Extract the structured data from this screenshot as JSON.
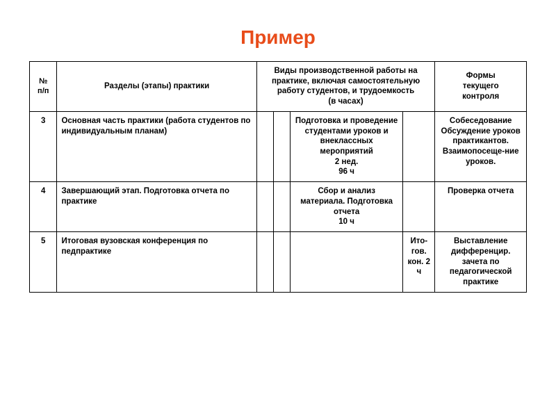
{
  "title": "Пример",
  "colors": {
    "title": "#e84c1a",
    "border": "#000000",
    "text": "#000000",
    "background": "#ffffff"
  },
  "columns": {
    "num_line1": "№",
    "num_line2": "п/п",
    "section": "Разделы (этапы) практики",
    "work_header_l1": "Виды производственной работы на практике, включая самостоятельную работу студентов, и трудоемкость",
    "work_header_l2": "(в часах)",
    "control_l1": "Формы",
    "control_l2": "текущего",
    "control_l3": "контроля"
  },
  "rows": [
    {
      "num": "3",
      "section": "Основная часть практики (работа студентов по индивидуальным планам)",
      "w1": "",
      "w2": "",
      "w3_l1": "Подготовка и проведение студентами уроков и внеклассных мероприятий",
      "w3_l2": "2 нед.",
      "w3_l3": "96 ч",
      "w4": "",
      "control": "Собеседование Обсуждение уроков практикантов. Взаимопосеще-ние уроков."
    },
    {
      "num": "4",
      "section": "Завершающий этап. Подготовка отчета по практике",
      "w1": "",
      "w2": "",
      "w3_l1": "Сбор и анализ материала. Подготовка отчета",
      "w3_l2": "10 ч",
      "w3_l3": "",
      "w4": "",
      "control": "Проверка отчета"
    },
    {
      "num": "5",
      "section": "Итоговая вузовская конференция по педпрактике",
      "w1": "",
      "w2": "",
      "w3_l1": "",
      "w3_l2": "",
      "w3_l3": "",
      "w4": "Ито-гов. кон. 2 ч",
      "control": "Выставление дифференцир. зачета по педагогической практике"
    }
  ]
}
